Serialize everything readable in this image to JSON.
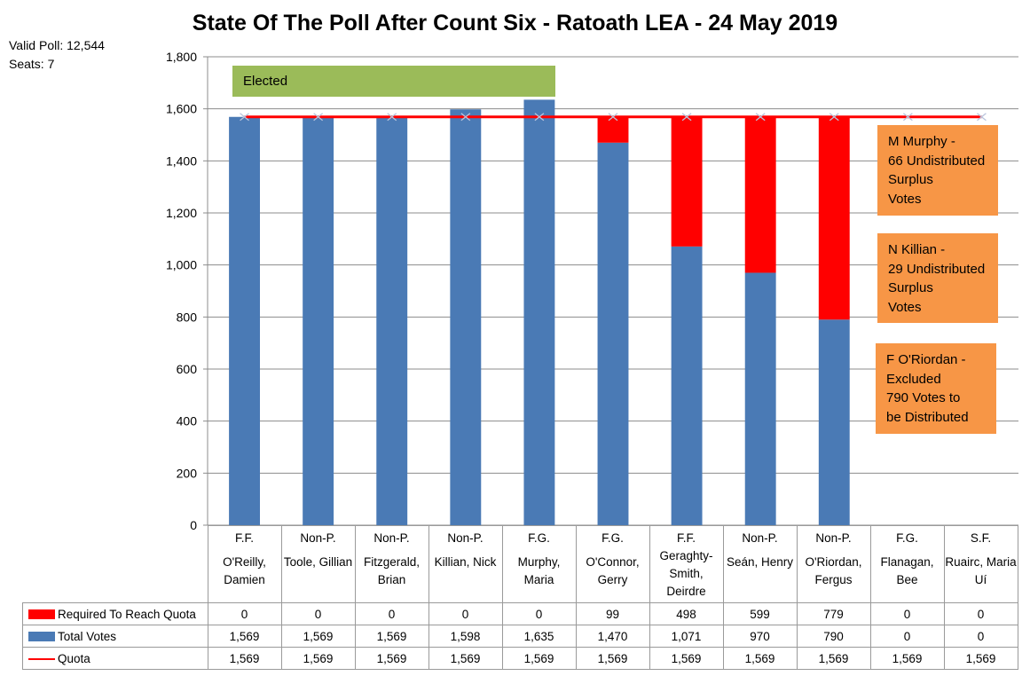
{
  "title": "State Of The Poll After Count Six - Ratoath LEA - 24 May 2019",
  "info": {
    "valid_poll": "Valid Poll: 12,544",
    "seats": "Seats:  7"
  },
  "elected_label": "Elected",
  "notes": [
    "M Murphy -\n66 Undistributed\nSurplus\nVotes",
    "N Killian -\n29 Undistributed\nSurplus\nVotes",
    "F O'Riordan -\nExcluded\n790 Votes to\nbe Distributed"
  ],
  "colors": {
    "required": "#ff0000",
    "total": "#4a7ab5",
    "quota": "#ff0000",
    "elected": "#9bbb59",
    "note": "#f79646"
  },
  "chart_data": {
    "type": "bar",
    "stacked": true,
    "title": "State Of The Poll After Count Six - Ratoath LEA - 24 May 2019",
    "ylim": [
      0,
      1800
    ],
    "yticks": [
      "0",
      "200",
      "400",
      "600",
      "800",
      "1,000",
      "1,200",
      "1,400",
      "1,600",
      "1,800"
    ],
    "grid": true,
    "parties": [
      "F.F.",
      "Non-P.",
      "Non-P.",
      "Non-P.",
      "F.G.",
      "F.G.",
      "F.F.",
      "Non-P.",
      "Non-P.",
      "F.G.",
      "S.F."
    ],
    "candidates": [
      "O'Reilly, Damien",
      "Toole, Gillian",
      "Fitzgerald, Brian",
      "Killian, Nick",
      "Murphy, Maria",
      "O'Connor, Gerry",
      "Geraghty-Smith, Deirdre",
      "Seán, Henry",
      "O'Riordan, Fergus",
      "Flanagan, Bee",
      "Ruairc, Maria Uí"
    ],
    "series": [
      {
        "name": "Required To Reach Quota",
        "type": "bar",
        "values": [
          0,
          0,
          0,
          0,
          0,
          99,
          498,
          599,
          779,
          0,
          0
        ],
        "labels": [
          "0",
          "0",
          "0",
          "0",
          "0",
          "99",
          "498",
          "599",
          "779",
          "0",
          "0"
        ]
      },
      {
        "name": "Total Votes",
        "type": "bar",
        "values": [
          1569,
          1569,
          1569,
          1598,
          1635,
          1470,
          1071,
          970,
          790,
          0,
          0
        ],
        "labels": [
          "1,569",
          "1,569",
          "1,569",
          "1,598",
          "1,635",
          "1,470",
          "1,071",
          "970",
          "790",
          "0",
          "0"
        ]
      },
      {
        "name": "Quota",
        "type": "line",
        "values": [
          1569,
          1569,
          1569,
          1569,
          1569,
          1569,
          1569,
          1569,
          1569,
          1569,
          1569
        ],
        "labels": [
          "1,569",
          "1,569",
          "1,569",
          "1,569",
          "1,569",
          "1,569",
          "1,569",
          "1,569",
          "1,569",
          "1,569",
          "1,569"
        ]
      }
    ]
  }
}
